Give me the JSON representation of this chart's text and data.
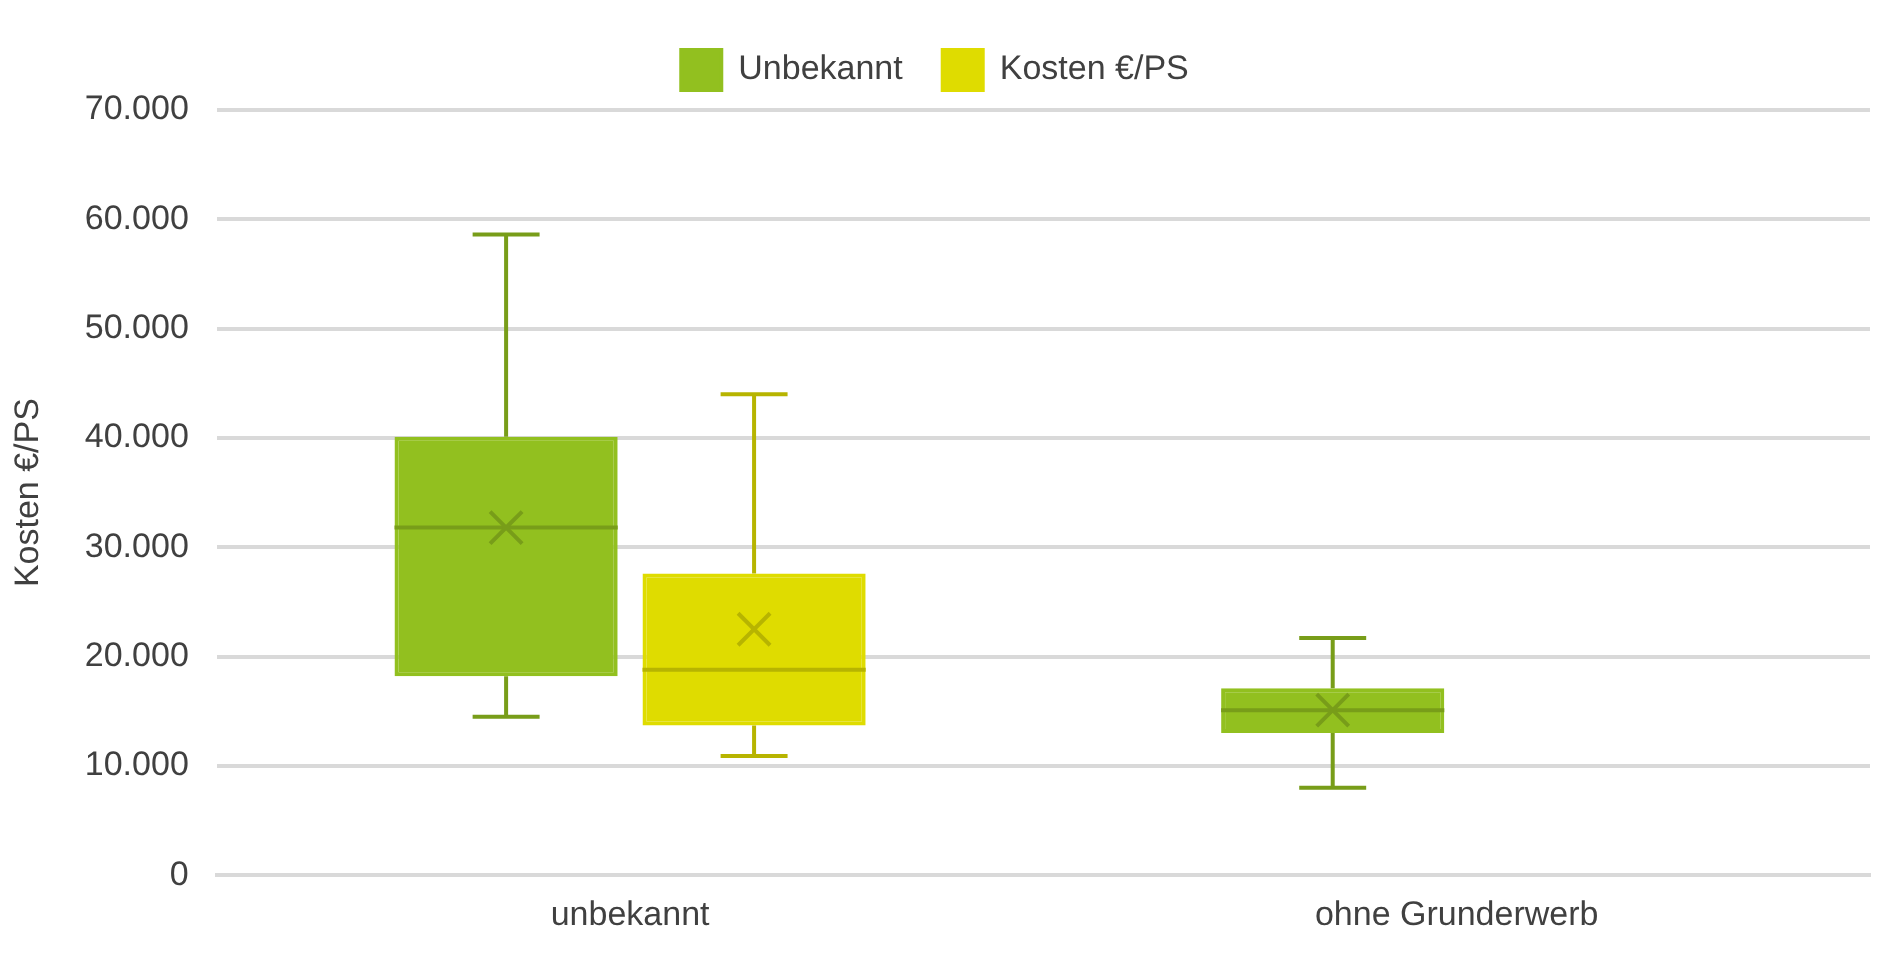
{
  "chart_data": {
    "type": "box",
    "ylabel": "Kosten €/PS",
    "categories": [
      "unbekannt",
      "ohne Grunderwerb"
    ],
    "series": [
      {
        "name": "Unbekannt",
        "color": "#92c01f",
        "boxes": [
          {
            "low": 14500,
            "q1": 18200,
            "median": 31800,
            "q3": 40100,
            "high": 58600,
            "mean": 31800
          },
          {
            "low": 8000,
            "q1": 13000,
            "median": 15100,
            "q3": 17100,
            "high": 21700,
            "mean": 15100
          }
        ]
      },
      {
        "name": "Kosten €/PS",
        "color": "#dfdc00",
        "boxes": [
          {
            "low": 10900,
            "q1": 13700,
            "median": 18800,
            "q3": 27600,
            "high": 44000,
            "mean": 22500
          },
          null
        ]
      }
    ],
    "ylim": [
      0,
      70000
    ],
    "yticks": [
      {
        "value": 0,
        "label": "0"
      },
      {
        "value": 10000,
        "label": "10.000"
      },
      {
        "value": 20000,
        "label": "20.000"
      },
      {
        "value": 30000,
        "label": "30.000"
      },
      {
        "value": 40000,
        "label": "40.000"
      },
      {
        "value": 50000,
        "label": "50.000"
      },
      {
        "value": 60000,
        "label": "60.000"
      },
      {
        "value": 70000,
        "label": "70.000"
      }
    ],
    "grid": "y",
    "legend": "top"
  }
}
